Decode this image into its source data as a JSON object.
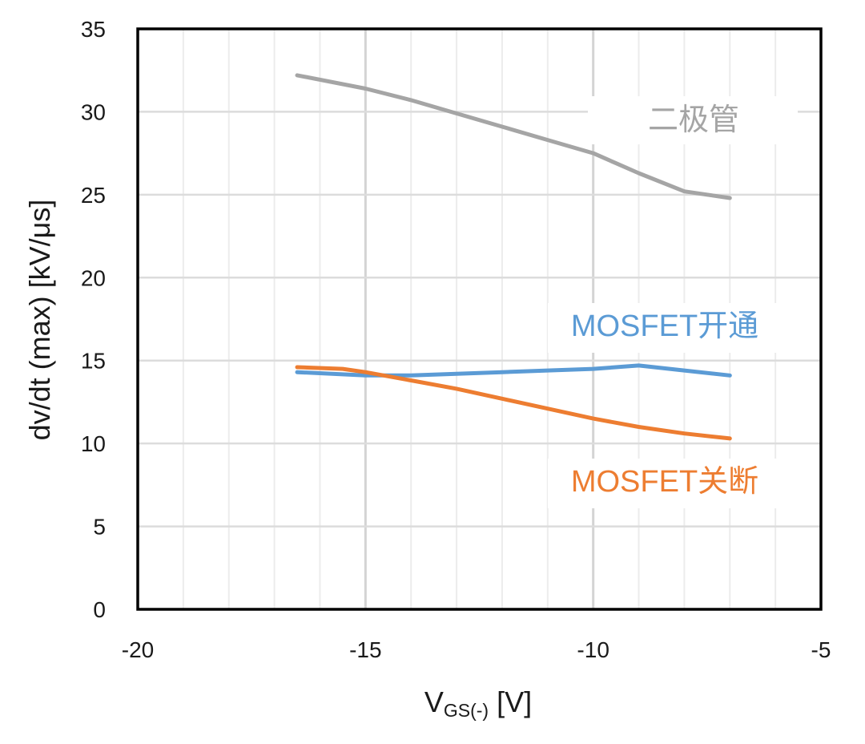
{
  "chart_data": {
    "type": "line",
    "title": "",
    "xlabel_main": "V",
    "xlabel_sub": "GS(-)",
    "xlabel_unit": " [V]",
    "ylabel": "dv/dt (max) [kV/μs]",
    "xlim": [
      -20,
      -5
    ],
    "ylim": [
      0,
      35
    ],
    "x_major_ticks": [
      -20,
      -15,
      -10,
      -5
    ],
    "x_minor_step": 1,
    "y_ticks": [
      0,
      5,
      10,
      15,
      20,
      25,
      30,
      35
    ],
    "x_tick_labels": [
      "-20",
      "-15",
      "-10",
      "-5"
    ],
    "y_tick_labels": [
      "0",
      "5",
      "10",
      "15",
      "20",
      "25",
      "30",
      "35"
    ],
    "grid": true,
    "series": [
      {
        "name": "二极管",
        "color": "#a5a5a5",
        "x": [
          -16.5,
          -15,
          -14,
          -13,
          -12,
          -11,
          -10,
          -9.5,
          -9,
          -8,
          -7
        ],
        "y": [
          32.2,
          31.4,
          30.7,
          29.9,
          29.1,
          28.3,
          27.5,
          26.9,
          26.3,
          25.2,
          24.8
        ]
      },
      {
        "name": "MOSFET开通",
        "color": "#5b9bd5",
        "x": [
          -16.5,
          -15,
          -14,
          -13,
          -12,
          -11,
          -10,
          -9,
          -8,
          -7
        ],
        "y": [
          14.3,
          14.1,
          14.1,
          14.2,
          14.3,
          14.4,
          14.5,
          14.7,
          14.4,
          14.1
        ]
      },
      {
        "name": "MOSFET关断",
        "color": "#ed7d31",
        "x": [
          -16.5,
          -15.5,
          -15,
          -14,
          -13,
          -12,
          -11,
          -10,
          -9,
          -8,
          -7
        ],
        "y": [
          14.6,
          14.5,
          14.3,
          13.8,
          13.3,
          12.7,
          12.1,
          11.5,
          11.0,
          10.6,
          10.3
        ]
      }
    ]
  }
}
